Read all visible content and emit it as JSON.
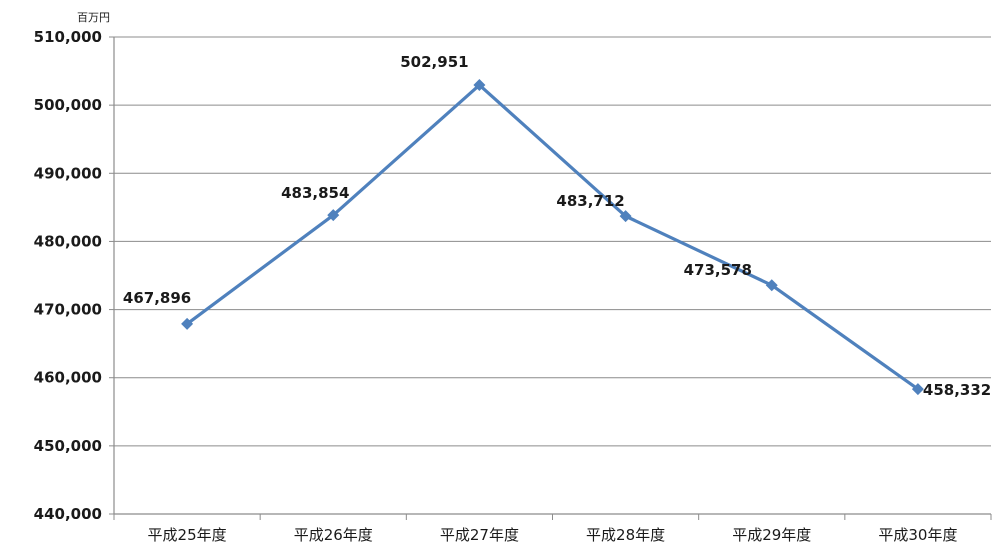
{
  "chart_data": {
    "type": "line",
    "unit_label": "百万円",
    "categories": [
      "平成25年度",
      "平成26年度",
      "平成27年度",
      "平成28年度",
      "平成29年度",
      "平成30年度"
    ],
    "series": [
      {
        "values": [
          467896,
          483854,
          502951,
          483712,
          473578,
          458332
        ],
        "data_labels": [
          "467,896",
          "483,854",
          "502,951",
          "483,712",
          "473,578",
          "458,332"
        ],
        "color": "#4f81bd"
      }
    ],
    "ylim": [
      440000,
      510000
    ],
    "yticks": [
      440000,
      450000,
      460000,
      470000,
      480000,
      490000,
      500000,
      510000
    ],
    "ytick_labels": [
      "440,000",
      "450,000",
      "460,000",
      "470,000",
      "480,000",
      "490,000",
      "500,000",
      "510,000"
    ],
    "grid": true,
    "legend": "none",
    "colors": {
      "line": "#4f81bd",
      "grid": "#8c8c8c",
      "axis": "#8c8c8c"
    }
  }
}
